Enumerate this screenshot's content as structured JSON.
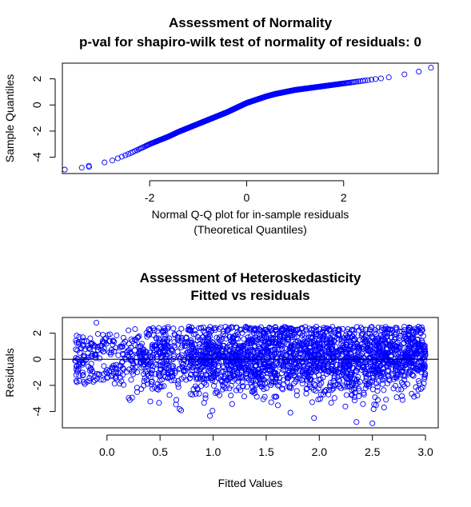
{
  "chart_data": [
    {
      "type": "scatter",
      "title": "Assessment of Normality",
      "subtitle": "p-val for shapiro-wilk test of normality of residuals: 0",
      "xlabel": "Normal Q-Q plot for in-sample residuals",
      "xlabel2": "(Theoretical Quantiles)",
      "ylabel": "Sample Quantiles",
      "xlim": [
        -3.8,
        3.95
      ],
      "ylim": [
        -5.25,
        3.2
      ],
      "xticks": [
        -2,
        0,
        2
      ],
      "yticks": [
        -4,
        -2,
        0,
        2
      ],
      "point_color": "#0000ff",
      "grid": false,
      "curve": [
        [
          -3.75,
          -4.95
        ],
        [
          -3.4,
          -4.8
        ],
        [
          -3.2,
          -4.6
        ],
        [
          -3.0,
          -4.45
        ],
        [
          -2.8,
          -4.3
        ],
        [
          -2.6,
          -4.0
        ],
        [
          -2.4,
          -3.7
        ],
        [
          -2.2,
          -3.35
        ],
        [
          -2.0,
          -3.0
        ],
        [
          -1.8,
          -2.7
        ],
        [
          -1.6,
          -2.4
        ],
        [
          -1.4,
          -2.05
        ],
        [
          -1.2,
          -1.75
        ],
        [
          -1.0,
          -1.45
        ],
        [
          -0.8,
          -1.15
        ],
        [
          -0.6,
          -0.85
        ],
        [
          -0.4,
          -0.55
        ],
        [
          -0.2,
          -0.2
        ],
        [
          0.0,
          0.15
        ],
        [
          0.2,
          0.4
        ],
        [
          0.4,
          0.65
        ],
        [
          0.6,
          0.85
        ],
        [
          0.8,
          1.0
        ],
        [
          1.0,
          1.15
        ],
        [
          1.2,
          1.25
        ],
        [
          1.4,
          1.35
        ],
        [
          1.6,
          1.45
        ],
        [
          1.8,
          1.55
        ],
        [
          2.0,
          1.65
        ],
        [
          2.2,
          1.75
        ],
        [
          2.4,
          1.85
        ],
        [
          2.6,
          1.95
        ],
        [
          2.8,
          2.05
        ],
        [
          3.0,
          2.15
        ],
        [
          3.2,
          2.3
        ],
        [
          3.4,
          2.45
        ],
        [
          3.55,
          2.55
        ],
        [
          3.8,
          2.85
        ]
      ]
    },
    {
      "type": "scatter",
      "title": "Assessment of Heteroskedasticity",
      "subtitle": "Fitted vs residuals",
      "xlabel": "Fitted Values",
      "ylabel": "Residuals",
      "xlim": [
        -0.42,
        3.12
      ],
      "ylim": [
        -5.25,
        3.2
      ],
      "xticks": [
        0.0,
        0.5,
        1.0,
        1.5,
        2.0,
        2.5,
        3.0
      ],
      "xtick_labels": [
        "0.0",
        "0.5",
        "1.0",
        "1.5",
        "2.0",
        "2.5",
        "3.0"
      ],
      "yticks": [
        -4,
        -2,
        0,
        2
      ],
      "reference_line_y": 0,
      "point_color": "#0000ff",
      "grid": false,
      "n_points": 2600,
      "fitted_range": [
        -0.3,
        3.0
      ],
      "notable_points": [
        [
          -0.1,
          2.8
        ],
        [
          2.35,
          -4.8
        ],
        [
          2.5,
          -4.9
        ],
        [
          1.95,
          -4.5
        ]
      ]
    }
  ]
}
